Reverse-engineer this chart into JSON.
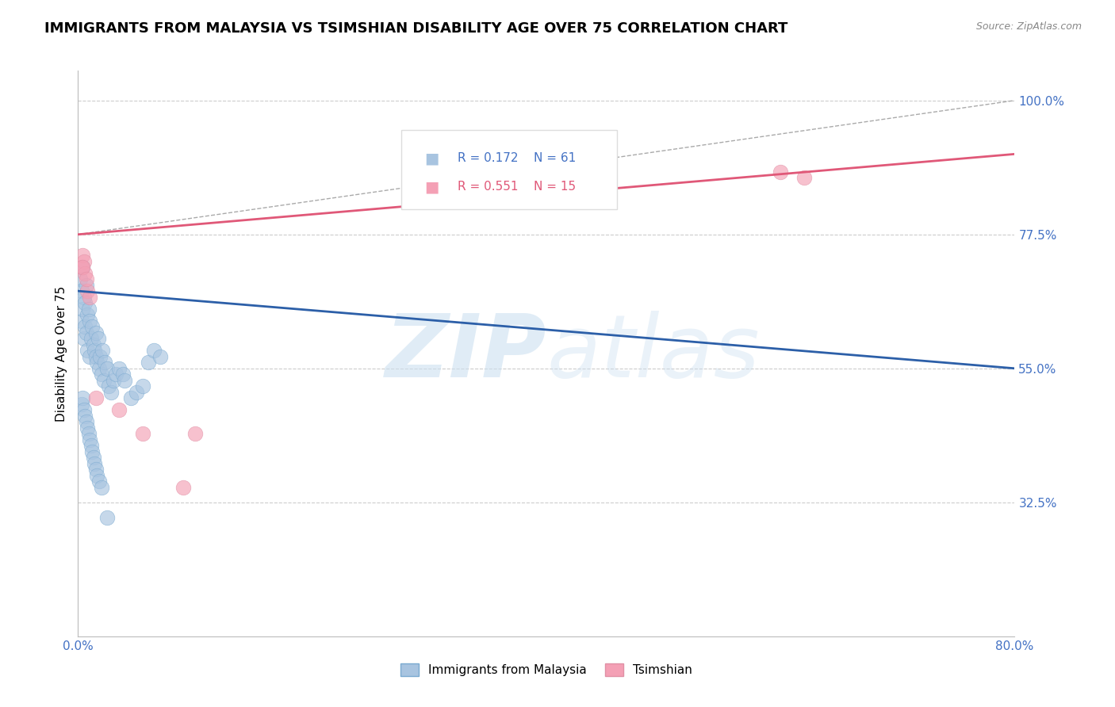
{
  "title": "IMMIGRANTS FROM MALAYSIA VS TSIMSHIAN DISABILITY AGE OVER 75 CORRELATION CHART",
  "source": "Source: ZipAtlas.com",
  "ylabel": "Disability Age Over 75",
  "xlim": [
    0.0,
    80.0
  ],
  "ylim": [
    10.0,
    105.0
  ],
  "yticks": [
    32.5,
    55.0,
    77.5,
    100.0
  ],
  "yticklabels": [
    "32.5%",
    "55.0%",
    "77.5%",
    "100.0%"
  ],
  "title_fontsize": 13,
  "axis_label_fontsize": 11,
  "tick_fontsize": 11,
  "label1": "Immigrants from Malaysia",
  "label2": "Tsimshian",
  "color1": "#a8c4e0",
  "color2": "#f4a0b5",
  "line_color1": "#2c5fa8",
  "line_color2": "#e05878",
  "tick_color": "#4472c4",
  "blue_scatter_x": [
    0.2,
    0.3,
    0.3,
    0.4,
    0.4,
    0.5,
    0.5,
    0.6,
    0.6,
    0.7,
    0.7,
    0.8,
    0.8,
    0.9,
    1.0,
    1.0,
    1.1,
    1.2,
    1.3,
    1.4,
    1.5,
    1.5,
    1.6,
    1.7,
    1.8,
    1.9,
    2.0,
    2.1,
    2.2,
    2.3,
    2.5,
    2.6,
    2.8,
    3.0,
    3.2,
    3.5,
    3.8,
    4.0,
    4.5,
    5.0,
    5.5,
    6.0,
    6.5,
    7.0,
    0.3,
    0.4,
    0.5,
    0.6,
    0.7,
    0.8,
    0.9,
    1.0,
    1.1,
    1.2,
    1.3,
    1.4,
    1.5,
    1.6,
    1.8,
    2.0,
    2.5
  ],
  "blue_scatter_y": [
    70,
    68,
    63,
    72,
    65,
    67,
    60,
    66,
    62,
    69,
    61,
    64,
    58,
    65,
    63,
    57,
    60,
    62,
    59,
    58,
    57,
    61,
    56,
    60,
    55,
    57,
    54,
    58,
    53,
    56,
    55,
    52,
    51,
    53,
    54,
    55,
    54,
    53,
    50,
    51,
    52,
    56,
    58,
    57,
    49,
    50,
    48,
    47,
    46,
    45,
    44,
    43,
    42,
    41,
    40,
    39,
    38,
    37,
    36,
    35,
    30
  ],
  "pink_scatter_x": [
    0.3,
    0.4,
    0.5,
    0.6,
    0.8,
    1.0,
    3.5,
    5.5,
    9.0,
    10.0,
    60.0,
    62.0,
    0.35,
    0.7,
    1.5
  ],
  "pink_scatter_y": [
    72,
    74,
    73,
    71,
    68,
    67,
    48,
    44,
    35,
    44,
    88,
    87,
    72,
    70,
    50
  ],
  "blue_line_x0": 0.0,
  "blue_line_y0": 68.0,
  "blue_line_x1": 80.0,
  "blue_line_y1": 55.0,
  "pink_line_x0": 0.0,
  "pink_line_y0": 77.5,
  "pink_line_x1": 80.0,
  "pink_line_y1": 91.0,
  "diag_x0": 0.0,
  "diag_y0": 77.5,
  "diag_x1": 80.0,
  "diag_y1": 100.0
}
